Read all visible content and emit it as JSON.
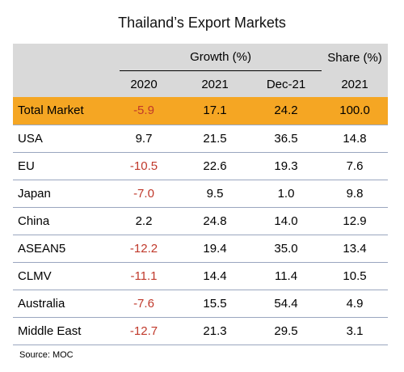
{
  "title": "Thailand’s Export Markets",
  "headers": {
    "growth_group": "Growth (%)",
    "share_group": "Share (%)",
    "col_2020": "2020",
    "col_2021": "2021",
    "col_dec21": "Dec-21",
    "col_share_2021": "2021"
  },
  "rows": [
    {
      "name": "Total Market",
      "g2020": "-5.9",
      "g2021": "17.1",
      "dec21": "24.2",
      "share": "100.0"
    },
    {
      "name": "USA",
      "g2020": "9.7",
      "g2021": "21.5",
      "dec21": "36.5",
      "share": "14.8"
    },
    {
      "name": "EU",
      "g2020": "-10.5",
      "g2021": "22.6",
      "dec21": "19.3",
      "share": "7.6"
    },
    {
      "name": "Japan",
      "g2020": "-7.0",
      "g2021": "9.5",
      "dec21": "1.0",
      "share": "9.8"
    },
    {
      "name": "China",
      "g2020": "2.2",
      "g2021": "24.8",
      "dec21": "14.0",
      "share": "12.9"
    },
    {
      "name": "ASEAN5",
      "g2020": "-12.2",
      "g2021": "19.4",
      "dec21": "35.0",
      "share": "13.4"
    },
    {
      "name": "CLMV",
      "g2020": "-11.1",
      "g2021": "14.4",
      "dec21": "11.4",
      "share": "10.5"
    },
    {
      "name": "Australia",
      "g2020": "-7.6",
      "g2021": "15.5",
      "dec21": "54.4",
      "share": "4.9"
    },
    {
      "name": "Middle East",
      "g2020": "-12.7",
      "g2021": "21.3",
      "dec21": "29.5",
      "share": "3.1"
    }
  ],
  "source": "Source: MOC",
  "colors": {
    "header_bg": "#d9d9d9",
    "total_row_bg": "#f5a623",
    "negative_text": "#c0392b"
  },
  "chart_data": {
    "type": "table",
    "title": "Thailand’s Export Markets",
    "columns": [
      "",
      "Growth (%) 2020",
      "Growth (%) 2021",
      "Growth (%) Dec-21",
      "Share (%) 2021"
    ],
    "rows": [
      [
        "Total Market",
        -5.9,
        17.1,
        24.2,
        100.0
      ],
      [
        "USA",
        9.7,
        21.5,
        36.5,
        14.8
      ],
      [
        "EU",
        -10.5,
        22.6,
        19.3,
        7.6
      ],
      [
        "Japan",
        -7.0,
        9.5,
        1.0,
        9.8
      ],
      [
        "China",
        2.2,
        24.8,
        14.0,
        12.9
      ],
      [
        "ASEAN5",
        -12.2,
        19.4,
        35.0,
        13.4
      ],
      [
        "CLMV",
        -11.1,
        14.4,
        11.4,
        10.5
      ],
      [
        "Australia",
        -7.6,
        15.5,
        54.4,
        4.9
      ],
      [
        "Middle East",
        -12.7,
        21.3,
        29.5,
        3.1
      ]
    ]
  }
}
